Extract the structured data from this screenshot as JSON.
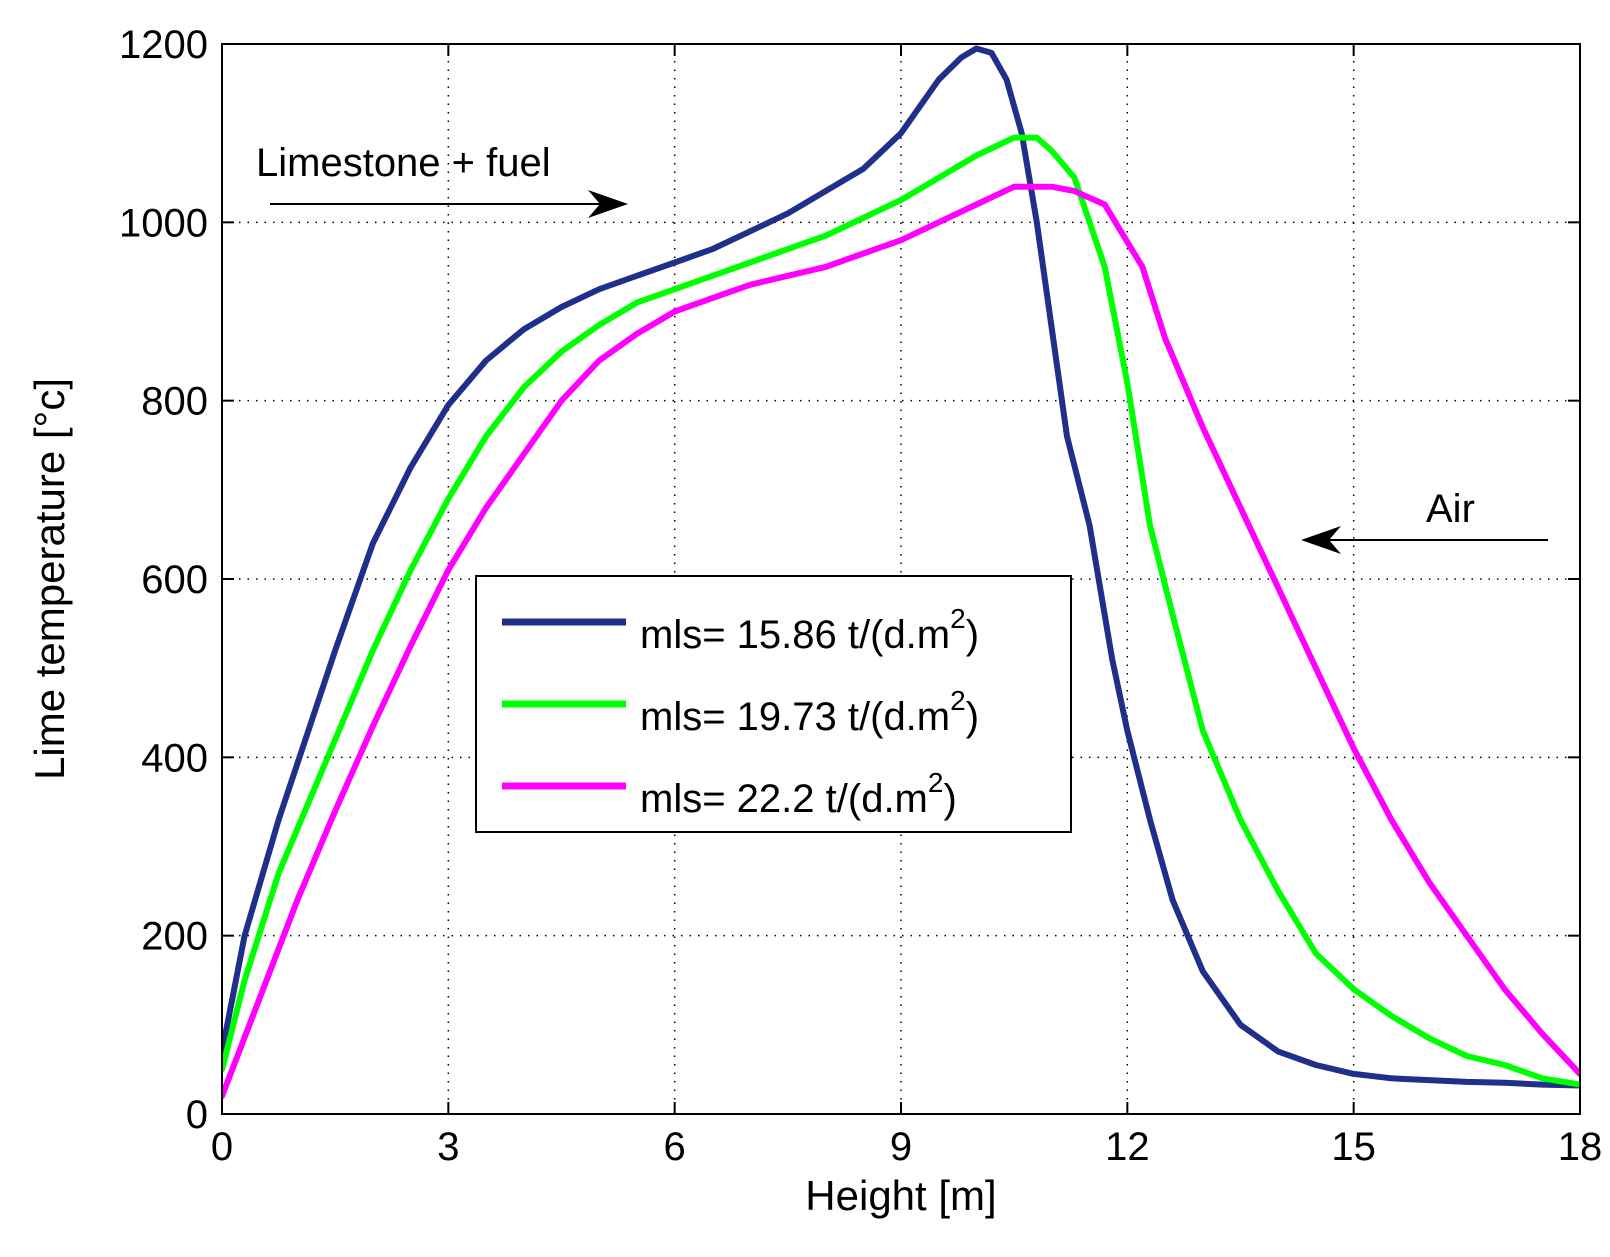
{
  "chart_data": {
    "type": "line",
    "title": "",
    "xlabel": "Height  [m]",
    "ylabel": "Lime temperature  [°c]",
    "xlim": [
      0,
      18
    ],
    "ylim": [
      0,
      1200
    ],
    "xticks": [
      "0",
      "3",
      "6",
      "9",
      "12",
      "15",
      "18"
    ],
    "yticks": [
      "0",
      "200",
      "400",
      "600",
      "800",
      "1000",
      "1200"
    ],
    "xtick_values": [
      0,
      3,
      6,
      9,
      12,
      15,
      18
    ],
    "ytick_values": [
      0,
      200,
      400,
      600,
      800,
      1000,
      1200
    ],
    "grid": true,
    "legend_position": "center-left",
    "annotations": [
      {
        "id": "fuel",
        "text": "Limestone + fuel",
        "arrow": "right"
      },
      {
        "id": "air",
        "text": "Air",
        "arrow": "left"
      }
    ],
    "series": [
      {
        "name": "mls= 15.86 t/(d.m2)",
        "label_prefix": "mls= 15.86 t/(d.m",
        "label_sup": "2",
        "label_suffix": ")",
        "color": "#1f2f8a",
        "x": [
          0,
          0.3,
          0.75,
          1.5,
          2.0,
          2.5,
          3.0,
          3.5,
          4.0,
          4.5,
          5.0,
          5.5,
          6.0,
          6.5,
          7.0,
          7.5,
          8.0,
          8.5,
          9.0,
          9.5,
          9.8,
          10.0,
          10.2,
          10.4,
          10.6,
          10.8,
          11.0,
          11.2,
          11.5,
          11.8,
          12.0,
          12.3,
          12.6,
          13.0,
          13.5,
          14.0,
          14.5,
          15.0,
          15.5,
          16.0,
          16.5,
          17.0,
          17.5,
          18.0
        ],
        "y": [
          70,
          200,
          330,
          520,
          640,
          725,
          795,
          845,
          880,
          905,
          925,
          940,
          955,
          970,
          990,
          1010,
          1035,
          1060,
          1100,
          1160,
          1185,
          1195,
          1190,
          1160,
          1100,
          1000,
          880,
          760,
          660,
          510,
          430,
          330,
          240,
          160,
          100,
          70,
          55,
          45,
          40,
          38,
          36,
          35,
          33,
          32
        ]
      },
      {
        "name": "mls= 19.73 t/(d.m2)",
        "label_prefix": "mls= 19.73 t/(d.m",
        "label_sup": "2",
        "label_suffix": ")",
        "color": "#00ff00",
        "x": [
          0,
          0.3,
          0.75,
          1.5,
          2.0,
          2.5,
          3.0,
          3.5,
          4.0,
          4.5,
          5.0,
          5.5,
          6.0,
          6.5,
          7.0,
          7.5,
          8.0,
          8.5,
          9.0,
          9.5,
          10.0,
          10.5,
          10.8,
          11.0,
          11.3,
          11.7,
          12.0,
          12.3,
          12.6,
          13.0,
          13.5,
          14.0,
          14.5,
          15.0,
          15.5,
          16.0,
          16.5,
          17.0,
          17.5,
          18.0
        ],
        "y": [
          50,
          150,
          270,
          420,
          520,
          610,
          690,
          760,
          815,
          855,
          885,
          910,
          925,
          940,
          955,
          970,
          985,
          1005,
          1025,
          1050,
          1075,
          1095,
          1095,
          1080,
          1050,
          950,
          820,
          660,
          560,
          430,
          330,
          250,
          180,
          140,
          110,
          85,
          65,
          55,
          40,
          33
        ]
      },
      {
        "name": "mls= 22.2 t/(d.m2)",
        "label_prefix": "mls= 22.2 t/(d.m",
        "label_sup": "2",
        "label_suffix": ")",
        "color": "#ff00ff",
        "x": [
          0,
          0.5,
          1.0,
          1.5,
          2.0,
          2.5,
          3.0,
          3.5,
          4.0,
          4.5,
          5.0,
          5.5,
          6.0,
          6.5,
          7.0,
          7.5,
          8.0,
          8.5,
          9.0,
          9.5,
          10.0,
          10.5,
          11.0,
          11.3,
          11.7,
          12.2,
          12.5,
          13.0,
          13.5,
          14.0,
          14.5,
          15.0,
          15.5,
          16.0,
          16.5,
          17.0,
          17.5,
          18.0
        ],
        "y": [
          20,
          130,
          240,
          340,
          435,
          525,
          610,
          680,
          740,
          800,
          845,
          875,
          900,
          915,
          930,
          940,
          950,
          965,
          980,
          1000,
          1020,
          1040,
          1040,
          1035,
          1020,
          950,
          870,
          770,
          680,
          590,
          500,
          410,
          330,
          260,
          200,
          140,
          90,
          45
        ]
      }
    ]
  }
}
